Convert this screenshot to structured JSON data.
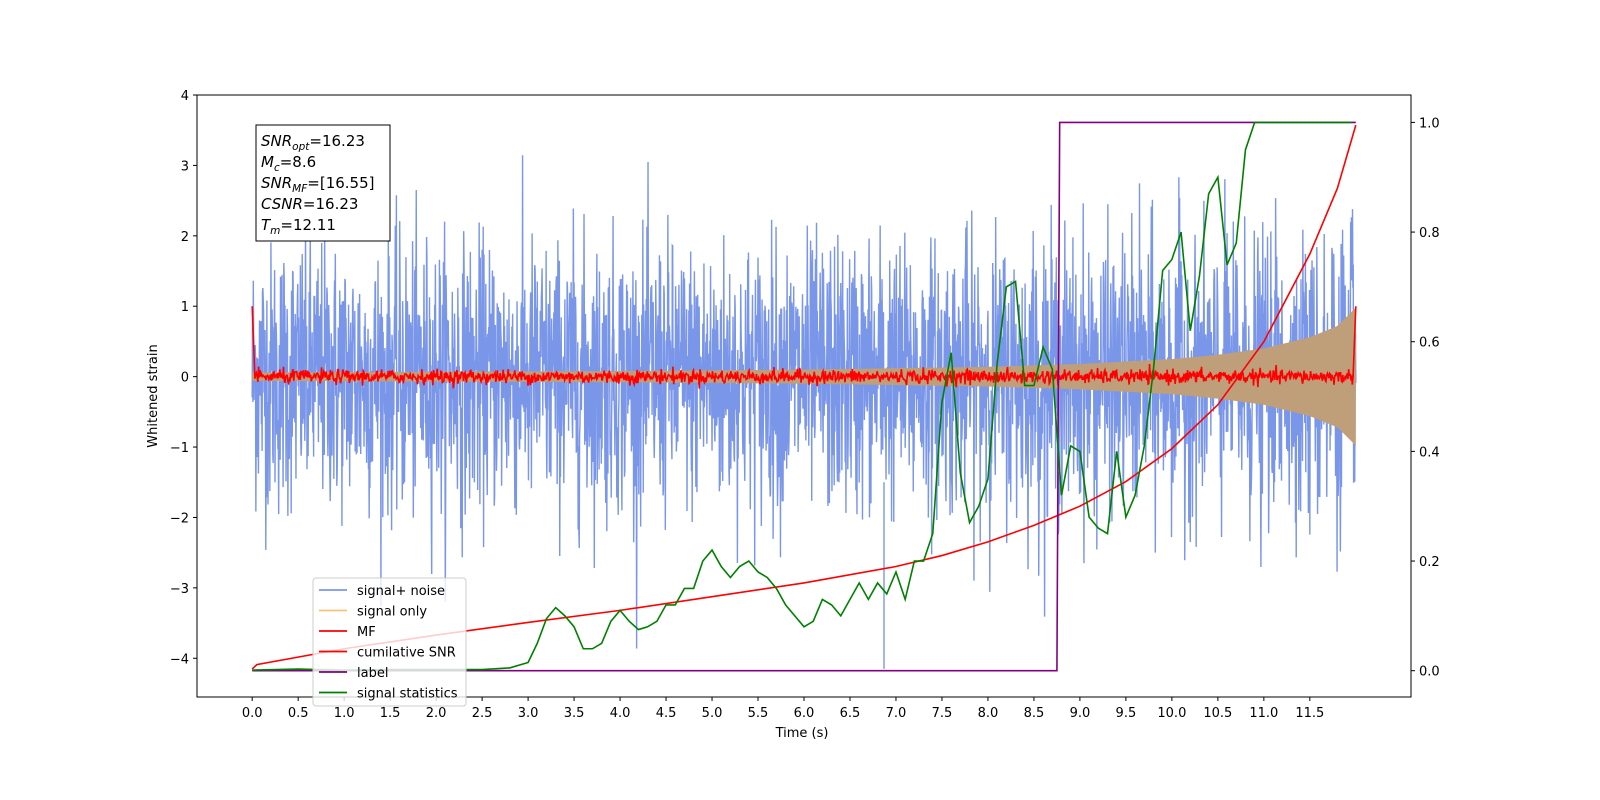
{
  "chart_data": {
    "type": "line",
    "xlabel": "Time (s)",
    "ylabel": "Whitened strain",
    "xlim": [
      -0.6,
      12.6
    ],
    "ylim": [
      -4.55,
      4.0
    ],
    "y2lim": [
      -0.048,
      1.05
    ],
    "xticks": [
      0.0,
      0.5,
      1.0,
      1.5,
      2.0,
      2.5,
      3.0,
      3.5,
      4.0,
      4.5,
      5.0,
      5.5,
      6.0,
      6.5,
      7.0,
      7.5,
      8.0,
      8.5,
      9.0,
      9.5,
      10.0,
      10.5,
      11.0,
      11.5
    ],
    "xtick_labels": [
      "0.0",
      "0.5",
      "1.0",
      "1.5",
      "2.0",
      "2.5",
      "3.0",
      "3.5",
      "4.0",
      "4.5",
      "5.0",
      "5.5",
      "6.0",
      "6.5",
      "7.0",
      "7.5",
      "8.0",
      "8.5",
      "9.0",
      "9.5",
      "10.0",
      "10.5",
      "11.0",
      "11.5"
    ],
    "yticks": [
      4,
      3,
      2,
      1,
      0,
      -1,
      -2,
      -3,
      -4
    ],
    "ytick_labels": [
      "4",
      "3",
      "2",
      "1",
      "0",
      "−1",
      "−2",
      "−3",
      "−4"
    ],
    "y2ticks": [
      1.0,
      0.8,
      0.6,
      0.4,
      0.2,
      0.0
    ],
    "y2tick_labels": [
      "1.0",
      "0.8",
      "0.6",
      "0.4",
      "0.2",
      "0.0"
    ],
    "grid": false,
    "legend_position": "lower-left",
    "annotation": [
      {
        "sym": "SNR",
        "sub": "opt",
        "val": "=16.23"
      },
      {
        "sym": "M",
        "sub": "c",
        "val": "=8.6"
      },
      {
        "sym": "SNR",
        "sub": "MF",
        "val": "=[16.55]"
      },
      {
        "sym": "CSNR",
        "sub": "",
        "val": "=16.23"
      },
      {
        "sym": "T",
        "sub": "m",
        "val": "=12.11"
      }
    ],
    "series": [
      {
        "name": "signal+ noise",
        "axis": "left",
        "color": "#7a96e8",
        "description_values": {
          "t_start": 0.0,
          "t_end": 12.0,
          "noise_sigma_approx": 1.0,
          "max_approx": 3.6,
          "min_approx": -4.15
        }
      },
      {
        "name": "signal only",
        "axis": "left",
        "color": "#f5c27a",
        "envelope_t": [
          0.0,
          2.0,
          4.0,
          6.0,
          8.0,
          9.0,
          10.0,
          10.5,
          11.0,
          11.5,
          11.8,
          12.0
        ],
        "envelope_amp": [
          0.06,
          0.07,
          0.08,
          0.1,
          0.14,
          0.18,
          0.25,
          0.31,
          0.4,
          0.56,
          0.72,
          0.98
        ]
      },
      {
        "name": "MF",
        "axis": "left",
        "color": "#ff0000",
        "t": [
          0.0,
          0.03,
          0.1,
          11.97,
          12.0
        ],
        "values": [
          1.0,
          0.0,
          0.0,
          0.0,
          1.0
        ],
        "noise_amp_approx": 0.05
      },
      {
        "name": "cumilative SNR",
        "axis": "right",
        "color": "#ff0000",
        "t": [
          0.0,
          0.05,
          1.0,
          2.0,
          3.0,
          4.0,
          5.0,
          6.0,
          7.0,
          7.5,
          8.0,
          8.5,
          9.0,
          9.5,
          10.0,
          10.5,
          11.0,
          11.5,
          11.8,
          12.0
        ],
        "values": [
          0.003,
          0.011,
          0.04,
          0.065,
          0.088,
          0.11,
          0.135,
          0.16,
          0.19,
          0.21,
          0.235,
          0.265,
          0.3,
          0.345,
          0.405,
          0.485,
          0.6,
          0.76,
          0.88,
          0.995
        ]
      },
      {
        "name": "label",
        "axis": "right",
        "color": "#800080",
        "t": [
          0.0,
          8.75,
          8.78,
          12.0
        ],
        "values": [
          0.0,
          0.0,
          1.0,
          1.0
        ]
      },
      {
        "name": "signal statistics",
        "axis": "right",
        "color": "#008000",
        "t": [
          0.0,
          0.5,
          1.0,
          1.5,
          2.0,
          2.5,
          2.8,
          3.0,
          3.1,
          3.2,
          3.3,
          3.4,
          3.5,
          3.6,
          3.7,
          3.8,
          3.9,
          4.0,
          4.1,
          4.2,
          4.3,
          4.4,
          4.5,
          4.6,
          4.7,
          4.8,
          4.9,
          5.0,
          5.1,
          5.2,
          5.3,
          5.4,
          5.5,
          5.6,
          5.7,
          5.8,
          5.9,
          6.0,
          6.1,
          6.2,
          6.3,
          6.4,
          6.5,
          6.6,
          6.7,
          6.8,
          6.9,
          7.0,
          7.1,
          7.2,
          7.3,
          7.4,
          7.5,
          7.6,
          7.7,
          7.8,
          7.9,
          8.0,
          8.1,
          8.2,
          8.3,
          8.4,
          8.5,
          8.6,
          8.7,
          8.8,
          8.9,
          9.0,
          9.1,
          9.2,
          9.3,
          9.4,
          9.5,
          9.6,
          9.7,
          9.8,
          9.9,
          10.0,
          10.1,
          10.2,
          10.3,
          10.4,
          10.5,
          10.6,
          10.7,
          10.8,
          10.9,
          11.0,
          11.2,
          11.5,
          11.8,
          11.95
        ],
        "values": [
          0.001,
          0.003,
          0.001,
          0.002,
          0.002,
          0.002,
          0.005,
          0.015,
          0.05,
          0.095,
          0.115,
          0.1,
          0.08,
          0.04,
          0.04,
          0.05,
          0.09,
          0.11,
          0.09,
          0.075,
          0.08,
          0.09,
          0.12,
          0.12,
          0.15,
          0.15,
          0.2,
          0.22,
          0.19,
          0.17,
          0.19,
          0.2,
          0.18,
          0.17,
          0.15,
          0.12,
          0.1,
          0.08,
          0.09,
          0.13,
          0.12,
          0.1,
          0.13,
          0.16,
          0.13,
          0.16,
          0.14,
          0.18,
          0.13,
          0.2,
          0.2,
          0.25,
          0.49,
          0.58,
          0.36,
          0.27,
          0.3,
          0.35,
          0.56,
          0.7,
          0.71,
          0.52,
          0.52,
          0.59,
          0.55,
          0.32,
          0.41,
          0.4,
          0.28,
          0.26,
          0.25,
          0.4,
          0.28,
          0.32,
          0.41,
          0.55,
          0.73,
          0.75,
          0.8,
          0.62,
          0.72,
          0.87,
          0.9,
          0.74,
          0.78,
          0.95,
          1.0,
          1.0,
          1.0,
          1.0,
          1.0,
          1.0
        ]
      }
    ]
  }
}
